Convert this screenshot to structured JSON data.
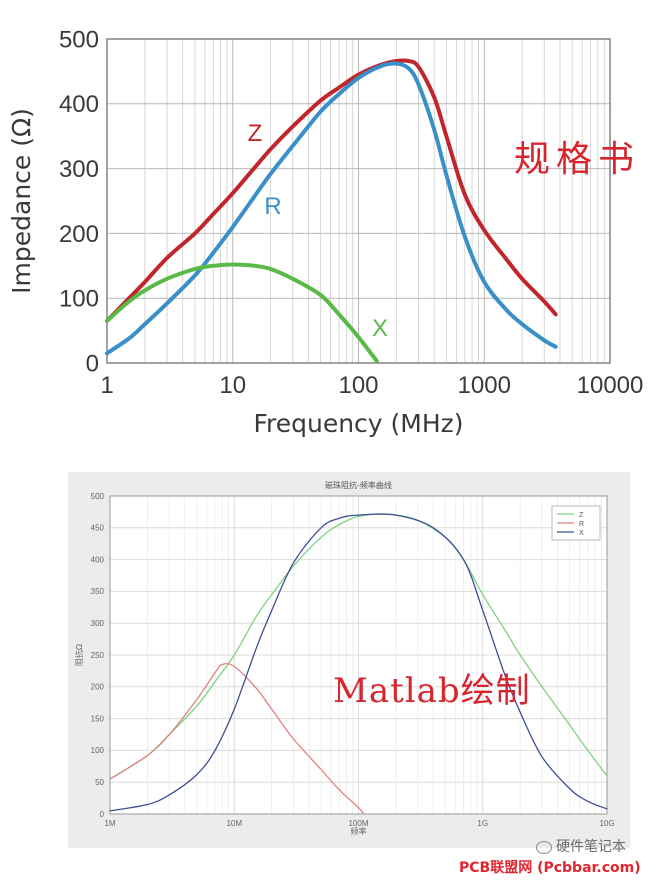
{
  "chart_data": [
    {
      "type": "line",
      "title": "",
      "xlabel": "Frequency (MHz)",
      "ylabel": "Impedance (Ω)",
      "xscale": "log",
      "xlim": [
        1,
        10000
      ],
      "ylim": [
        0,
        500
      ],
      "x_ticks": [
        "1",
        "10",
        "100",
        "1000",
        "10000"
      ],
      "y_ticks": [
        "0",
        "100",
        "200",
        "300",
        "400",
        "500"
      ],
      "grid": true,
      "series": [
        {
          "name": "Z",
          "color": "#c0262c",
          "x": [
            1,
            1.5,
            2,
            3,
            5,
            7,
            10,
            15,
            20,
            30,
            50,
            70,
            100,
            150,
            200,
            250,
            300,
            400,
            500,
            700,
            1000,
            1500,
            2000,
            3000,
            3700
          ],
          "y": [
            65,
            100,
            125,
            162,
            200,
            230,
            262,
            302,
            330,
            365,
            405,
            425,
            445,
            460,
            466,
            466,
            457,
            410,
            350,
            260,
            205,
            160,
            130,
            95,
            75
          ]
        },
        {
          "name": "R",
          "color": "#3a8fc8",
          "x": [
            1,
            1.5,
            2,
            3,
            5,
            7,
            10,
            15,
            20,
            30,
            50,
            70,
            100,
            150,
            200,
            250,
            300,
            400,
            500,
            700,
            1000,
            1500,
            2000,
            3000,
            3700
          ],
          "y": [
            15,
            38,
            60,
            92,
            135,
            170,
            210,
            258,
            292,
            335,
            388,
            415,
            440,
            458,
            462,
            455,
            430,
            360,
            290,
            195,
            125,
            82,
            60,
            35,
            25
          ]
        },
        {
          "name": "X",
          "color": "#5ab947",
          "x": [
            1,
            1.5,
            2,
            3,
            5,
            7,
            10,
            15,
            20,
            30,
            50,
            70,
            100,
            140
          ],
          "y": [
            65,
            95,
            112,
            130,
            145,
            150,
            152,
            150,
            145,
            130,
            105,
            75,
            40,
            3
          ]
        }
      ],
      "annotations": [
        {
          "text": "Z",
          "color": "#c0262c"
        },
        {
          "text": "R",
          "color": "#3a8fc8"
        },
        {
          "text": "X",
          "color": "#5ab947"
        }
      ]
    },
    {
      "type": "line",
      "title": "磁珠阻抗-频率曲线",
      "xlabel": "频率",
      "ylabel": "阻抗Ω",
      "xscale": "log",
      "xlim": [
        1,
        10000
      ],
      "ylim": [
        0,
        500
      ],
      "x_ticks": [
        "1M",
        "10M",
        "100M",
        "1G",
        "10G"
      ],
      "y_ticks": [
        "0",
        "50",
        "100",
        "150",
        "200",
        "250",
        "300",
        "350",
        "400",
        "450",
        "500"
      ],
      "grid": true,
      "legend": "top-right",
      "series": [
        {
          "name": "Z",
          "color": "#7ed37e",
          "x": [
            1,
            2,
            3,
            5,
            7,
            10,
            15,
            20,
            30,
            50,
            70,
            100,
            150,
            200,
            300,
            500,
            700,
            1000,
            1500,
            2000,
            3000,
            5000,
            7000,
            10000
          ],
          "y": [
            55,
            92,
            125,
            170,
            208,
            250,
            310,
            345,
            390,
            435,
            455,
            468,
            472,
            470,
            462,
            435,
            400,
            345,
            290,
            250,
            200,
            140,
            100,
            60
          ]
        },
        {
          "name": "R",
          "color": "#e08080",
          "x": [
            1,
            2,
            3,
            5,
            7,
            8,
            10,
            15,
            20,
            30,
            50,
            70,
            100,
            110
          ],
          "y": [
            55,
            92,
            125,
            180,
            222,
            235,
            232,
            198,
            165,
            118,
            70,
            38,
            10,
            0
          ]
        },
        {
          "name": "X",
          "color": "#3d4d9a",
          "x": [
            1,
            2,
            3,
            5,
            7,
            10,
            15,
            20,
            30,
            50,
            70,
            100,
            200,
            400,
            700,
            1000,
            1500,
            2000,
            3000,
            5000,
            7000,
            10000
          ],
          "y": [
            5,
            15,
            30,
            62,
            100,
            165,
            260,
            320,
            395,
            450,
            465,
            470,
            470,
            450,
            400,
            320,
            220,
            160,
            90,
            40,
            20,
            8
          ]
        }
      ]
    }
  ],
  "labels": {
    "spec": "规格书",
    "matlab": "Matlab绘制"
  },
  "watermarks": {
    "wechat": "硬件笔记本",
    "site": "PCB联盟网 (Pcbbar.com)"
  }
}
